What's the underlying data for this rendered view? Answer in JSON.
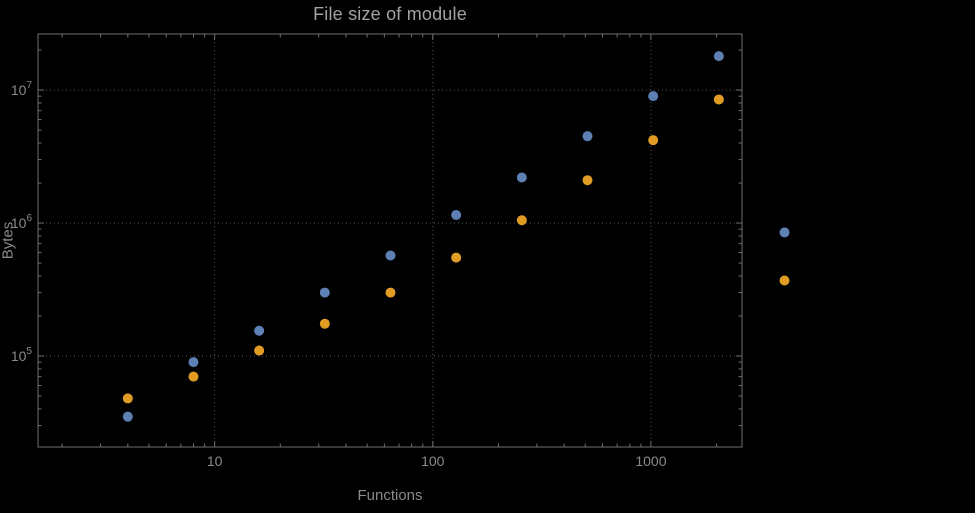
{
  "chart_data": {
    "type": "scatter",
    "title": "File size of module",
    "xlabel": "Functions",
    "ylabel": "Bytes",
    "x_scale": "log",
    "y_scale": "log",
    "xlim": [
      1.55,
      2615
    ],
    "ylim": [
      20700,
      26400000
    ],
    "x_ticks": [
      10,
      100,
      1000
    ],
    "y_ticks": [
      100000,
      1000000,
      10000000
    ],
    "grid": "dotted-major-gridlines",
    "legend": "none",
    "x": [
      4,
      8,
      16,
      32,
      64,
      128,
      256,
      512,
      1024,
      2048,
      4096
    ],
    "series": [
      {
        "name": "series-1-blue",
        "color": "#5e81b5",
        "values": [
          35000,
          90000,
          155000,
          300000,
          570000,
          1150000,
          2200000,
          4500000,
          9000000,
          18000000,
          850000
        ]
      },
      {
        "name": "series-2-orange",
        "color": "#e19c24",
        "values": [
          48000,
          70000,
          110000,
          175000,
          300000,
          550000,
          1050000,
          2100000,
          4200000,
          8500000,
          370000
        ]
      }
    ],
    "colors": {
      "background": "#000000",
      "frame": "#6f6f6f",
      "grid": "#565656",
      "tick_text": "#8a8a8a",
      "title_text": "#a2a2a2"
    }
  }
}
